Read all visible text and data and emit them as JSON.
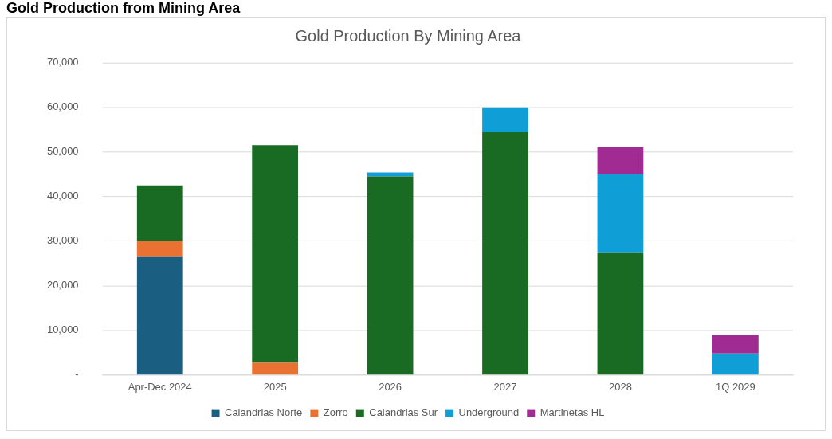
{
  "chart_data": {
    "type": "bar",
    "title": "Gold Production from Mining Area",
    "subtitle": "Gold Production By Mining Area",
    "categories": [
      "Apr-Dec 2024",
      "2025",
      "2026",
      "2027",
      "2028",
      "1Q 2029"
    ],
    "stacked": true,
    "series": [
      {
        "name": "Calandrias Norte",
        "color": "#1a5e82",
        "values": [
          26600,
          null,
          null,
          null,
          null,
          null
        ]
      },
      {
        "name": "Zorro",
        "color": "#e97132",
        "values": [
          3400,
          2900,
          null,
          null,
          null,
          null
        ]
      },
      {
        "name": "Calandrias Sur",
        "color": "#196b24",
        "values": [
          12500,
          48600,
          44500,
          54400,
          27500,
          null
        ]
      },
      {
        "name": "Underground",
        "color": "#0f9ed5",
        "values": [
          null,
          null,
          900,
          5600,
          17500,
          4800
        ]
      },
      {
        "name": "Martinetas HL",
        "color": "#a02b93",
        "values": [
          null,
          null,
          null,
          null,
          6100,
          4200
        ]
      }
    ],
    "ylim": [
      0,
      70000
    ],
    "yticks": [
      {
        "value": 0,
        "label": "-"
      },
      {
        "value": 10000,
        "label": "10,000"
      },
      {
        "value": 20000,
        "label": "20,000"
      },
      {
        "value": 30000,
        "label": "30,000"
      },
      {
        "value": 40000,
        "label": "40,000"
      },
      {
        "value": 50000,
        "label": "50,000"
      },
      {
        "value": 60000,
        "label": "60,000"
      },
      {
        "value": 70000,
        "label": "70,000"
      }
    ],
    "grid": "y",
    "legend": "bottom"
  }
}
